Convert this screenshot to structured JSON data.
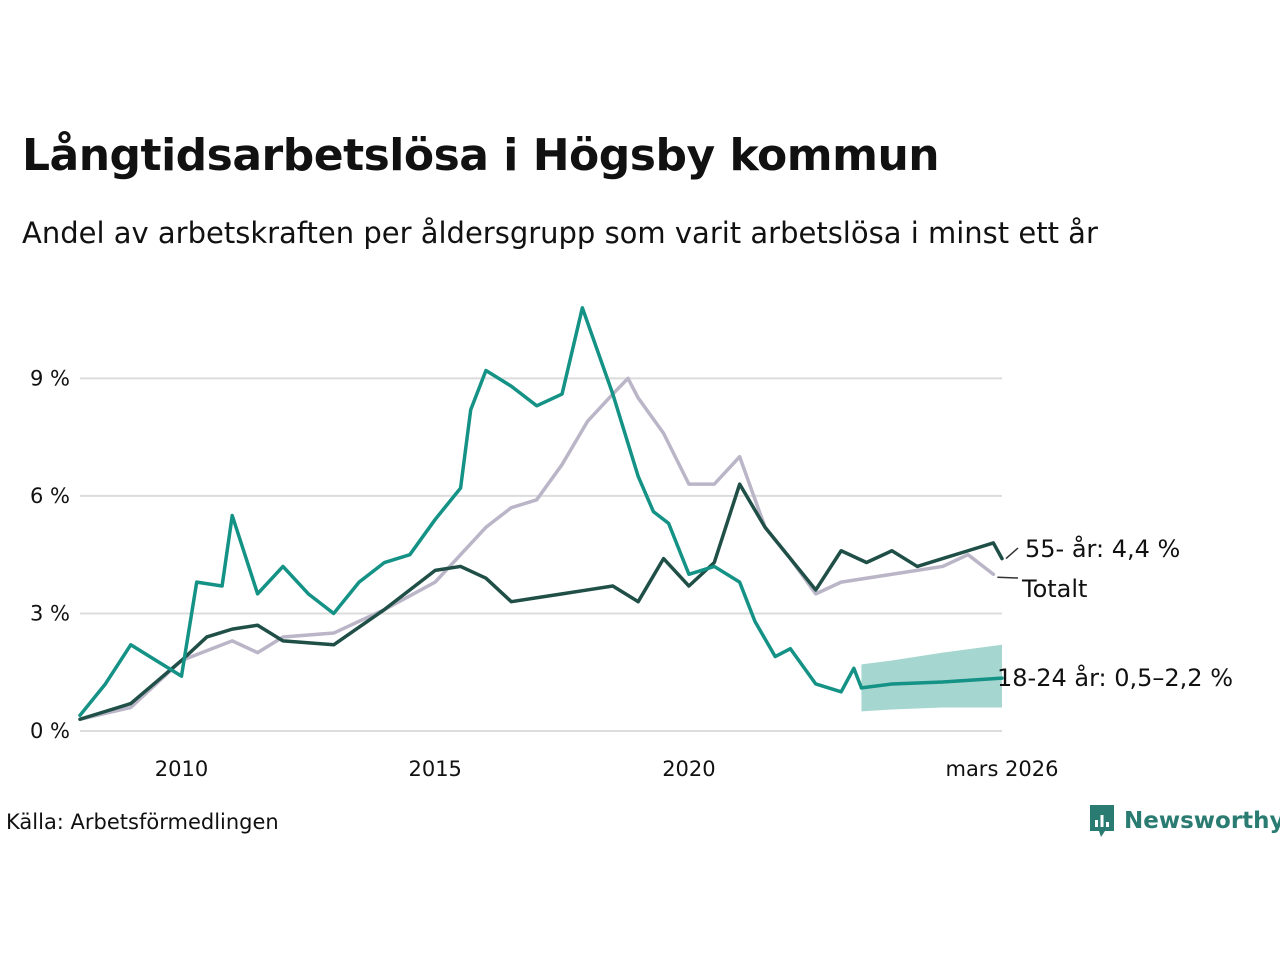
{
  "title": "Långtidsarbetslösa i Högsby kommun",
  "subtitle": "Andel av arbetskraften per åldersgrupp som varit arbetslösa i minst ett år",
  "source": "Källa: Arbetsförmedlingen",
  "brand": {
    "name": "Newsworthy",
    "icon": "newsworthy-logo-icon",
    "color": "#2a7c72"
  },
  "chart_data": {
    "type": "line",
    "title": "Långtidsarbetslösa i Högsby kommun",
    "ylabel": "",
    "xlim": [
      2008.0,
      2026.17
    ],
    "ylim": [
      0,
      11
    ],
    "yticks": [
      {
        "value": 0,
        "label": "0 %"
      },
      {
        "value": 3,
        "label": "3 %"
      },
      {
        "value": 6,
        "label": "6 %"
      },
      {
        "value": 9,
        "label": "9 %"
      }
    ],
    "xticks": [
      {
        "value": 2010,
        "label": "2010"
      },
      {
        "value": 2015,
        "label": "2015"
      },
      {
        "value": 2020,
        "label": "2020"
      },
      {
        "value": 2026.17,
        "label": "mars 2026"
      }
    ],
    "series": [
      {
        "name": "Totalt",
        "color": "#bbb5c8",
        "label": "Totalt",
        "points": [
          [
            2008.0,
            0.3
          ],
          [
            2009.0,
            0.6
          ],
          [
            2010.0,
            1.8
          ],
          [
            2011.0,
            2.3
          ],
          [
            2011.5,
            2.0
          ],
          [
            2012.0,
            2.4
          ],
          [
            2013.0,
            2.5
          ],
          [
            2014.0,
            3.1
          ],
          [
            2015.0,
            3.8
          ],
          [
            2015.5,
            4.5
          ],
          [
            2016.0,
            5.2
          ],
          [
            2016.5,
            5.7
          ],
          [
            2017.0,
            5.9
          ],
          [
            2017.5,
            6.8
          ],
          [
            2018.0,
            7.9
          ],
          [
            2018.5,
            8.6
          ],
          [
            2018.8,
            9.0
          ],
          [
            2019.0,
            8.5
          ],
          [
            2019.5,
            7.6
          ],
          [
            2020.0,
            6.3
          ],
          [
            2020.5,
            6.3
          ],
          [
            2021.0,
            7.0
          ],
          [
            2021.5,
            5.2
          ],
          [
            2022.0,
            4.4
          ],
          [
            2022.5,
            3.5
          ],
          [
            2023.0,
            3.8
          ],
          [
            2024.0,
            4.0
          ],
          [
            2025.0,
            4.2
          ],
          [
            2025.5,
            4.5
          ],
          [
            2026.0,
            4.0
          ]
        ]
      },
      {
        "name": "55- år",
        "color": "#1f4f47",
        "label": "55- år: 4,4 %",
        "points": [
          [
            2008.0,
            0.3
          ],
          [
            2009.0,
            0.7
          ],
          [
            2010.0,
            1.8
          ],
          [
            2010.5,
            2.4
          ],
          [
            2011.0,
            2.6
          ],
          [
            2011.5,
            2.7
          ],
          [
            2012.0,
            2.3
          ],
          [
            2013.0,
            2.2
          ],
          [
            2014.0,
            3.1
          ],
          [
            2015.0,
            4.1
          ],
          [
            2015.5,
            4.2
          ],
          [
            2016.0,
            3.9
          ],
          [
            2016.5,
            3.3
          ],
          [
            2017.0,
            3.4
          ],
          [
            2017.5,
            3.5
          ],
          [
            2018.0,
            3.6
          ],
          [
            2018.5,
            3.7
          ],
          [
            2019.0,
            3.3
          ],
          [
            2019.5,
            4.4
          ],
          [
            2020.0,
            3.7
          ],
          [
            2020.5,
            4.3
          ],
          [
            2021.0,
            6.3
          ],
          [
            2021.5,
            5.2
          ],
          [
            2022.0,
            4.4
          ],
          [
            2022.5,
            3.6
          ],
          [
            2023.0,
            4.6
          ],
          [
            2023.5,
            4.3
          ],
          [
            2024.0,
            4.6
          ],
          [
            2024.5,
            4.2
          ],
          [
            2025.0,
            4.4
          ],
          [
            2025.5,
            4.6
          ],
          [
            2026.0,
            4.8
          ],
          [
            2026.17,
            4.4
          ]
        ]
      },
      {
        "name": "18-24 år",
        "color": "#149285",
        "label": "18-24 år: 0,5–2,2 %",
        "points": [
          [
            2008.0,
            0.4
          ],
          [
            2008.5,
            1.2
          ],
          [
            2009.0,
            2.2
          ],
          [
            2009.5,
            1.8
          ],
          [
            2010.0,
            1.4
          ],
          [
            2010.3,
            3.8
          ],
          [
            2010.8,
            3.7
          ],
          [
            2011.0,
            5.5
          ],
          [
            2011.5,
            3.5
          ],
          [
            2012.0,
            4.2
          ],
          [
            2012.5,
            3.5
          ],
          [
            2013.0,
            3.0
          ],
          [
            2013.5,
            3.8
          ],
          [
            2014.0,
            4.3
          ],
          [
            2014.5,
            4.5
          ],
          [
            2015.0,
            5.4
          ],
          [
            2015.5,
            6.2
          ],
          [
            2015.7,
            8.2
          ],
          [
            2016.0,
            9.2
          ],
          [
            2016.5,
            8.8
          ],
          [
            2017.0,
            8.3
          ],
          [
            2017.5,
            8.6
          ],
          [
            2017.9,
            10.8
          ],
          [
            2018.5,
            8.6
          ],
          [
            2019.0,
            6.5
          ],
          [
            2019.3,
            5.6
          ],
          [
            2019.6,
            5.3
          ],
          [
            2020.0,
            4.0
          ],
          [
            2020.5,
            4.2
          ],
          [
            2021.0,
            3.8
          ],
          [
            2021.3,
            2.8
          ],
          [
            2021.7,
            1.9
          ],
          [
            2022.0,
            2.1
          ],
          [
            2022.5,
            1.2
          ],
          [
            2023.0,
            1.0
          ],
          [
            2023.25,
            1.6
          ],
          [
            2023.4,
            1.1
          ]
        ]
      }
    ],
    "forecast": {
      "series": "18-24 år",
      "color": "#149285",
      "band_color": "#a6d6d0",
      "line": [
        [
          2023.4,
          1.1
        ],
        [
          2024.0,
          1.2
        ],
        [
          2025.0,
          1.25
        ],
        [
          2026.17,
          1.35
        ]
      ],
      "band": [
        [
          2023.4,
          0.5,
          1.7
        ],
        [
          2024.0,
          0.55,
          1.8
        ],
        [
          2025.0,
          0.6,
          2.0
        ],
        [
          2026.17,
          0.6,
          2.2
        ]
      ]
    }
  }
}
